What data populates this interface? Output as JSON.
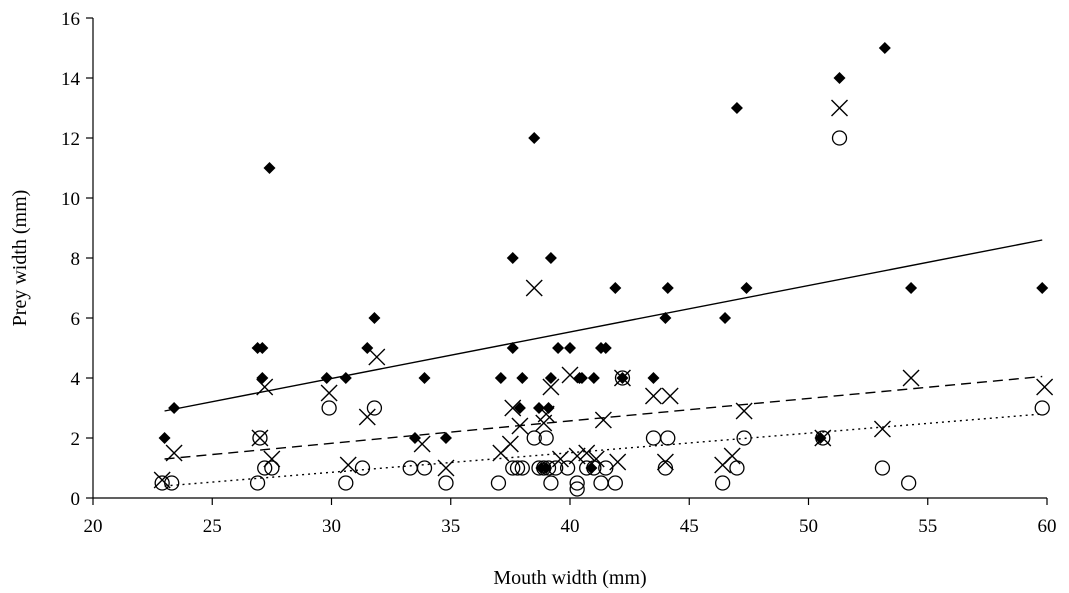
{
  "chart_data": {
    "type": "scatter",
    "xlabel": "Mouth width (mm)",
    "ylabel": "Prey width (mm)",
    "xlim": [
      20,
      60
    ],
    "ylim": [
      0,
      16
    ],
    "xticks": [
      20,
      25,
      30,
      35,
      40,
      45,
      50,
      55,
      60
    ],
    "yticks": [
      0,
      2,
      4,
      6,
      8,
      10,
      12,
      14,
      16
    ],
    "grid": false,
    "legend": "none",
    "series": [
      {
        "marker": "diamond",
        "color": "#000000",
        "points": [
          [
            23.0,
            2
          ],
          [
            23.4,
            3
          ],
          [
            26.9,
            5
          ],
          [
            27.1,
            5
          ],
          [
            27.1,
            4
          ],
          [
            27.4,
            11
          ],
          [
            29.8,
            4
          ],
          [
            30.6,
            4
          ],
          [
            31.5,
            5
          ],
          [
            31.8,
            6
          ],
          [
            33.5,
            2
          ],
          [
            33.9,
            4
          ],
          [
            34.8,
            2
          ],
          [
            37.1,
            4
          ],
          [
            37.6,
            8
          ],
          [
            37.6,
            5
          ],
          [
            37.9,
            3
          ],
          [
            38.0,
            4
          ],
          [
            38.5,
            12
          ],
          [
            38.7,
            3
          ],
          [
            38.8,
            1
          ],
          [
            39.0,
            1
          ],
          [
            39.1,
            3
          ],
          [
            39.2,
            8
          ],
          [
            39.2,
            4
          ],
          [
            39.5,
            5
          ],
          [
            40.0,
            5
          ],
          [
            40.4,
            4
          ],
          [
            40.5,
            4
          ],
          [
            40.9,
            1
          ],
          [
            41.0,
            4
          ],
          [
            41.3,
            5
          ],
          [
            41.5,
            5
          ],
          [
            41.9,
            7
          ],
          [
            42.2,
            4
          ],
          [
            43.5,
            4
          ],
          [
            44.0,
            6
          ],
          [
            44.1,
            7
          ],
          [
            46.5,
            6
          ],
          [
            47.0,
            13
          ],
          [
            47.4,
            7
          ],
          [
            50.5,
            2
          ],
          [
            51.3,
            14
          ],
          [
            53.2,
            15
          ],
          [
            54.3,
            7
          ],
          [
            59.8,
            7
          ]
        ]
      },
      {
        "marker": "x",
        "color": "#000000",
        "points": [
          [
            22.9,
            0.6
          ],
          [
            23.4,
            1.5
          ],
          [
            27.0,
            2.0
          ],
          [
            27.2,
            3.7
          ],
          [
            27.5,
            1.3
          ],
          [
            29.9,
            3.5
          ],
          [
            30.7,
            1.1
          ],
          [
            31.5,
            2.7
          ],
          [
            31.9,
            4.7
          ],
          [
            33.8,
            1.8
          ],
          [
            34.8,
            1.0
          ],
          [
            37.1,
            1.5
          ],
          [
            37.5,
            1.8
          ],
          [
            37.6,
            3.0
          ],
          [
            37.9,
            2.4
          ],
          [
            38.5,
            7.0
          ],
          [
            38.9,
            2.5
          ],
          [
            39.0,
            2.8
          ],
          [
            39.2,
            3.7
          ],
          [
            39.6,
            1.3
          ],
          [
            40.0,
            4.1
          ],
          [
            40.3,
            1.4
          ],
          [
            40.7,
            1.5
          ],
          [
            41.1,
            1.3
          ],
          [
            41.4,
            2.6
          ],
          [
            42.0,
            1.2
          ],
          [
            42.2,
            4.0
          ],
          [
            43.5,
            3.4
          ],
          [
            44.0,
            1.2
          ],
          [
            44.2,
            3.4
          ],
          [
            46.4,
            1.1
          ],
          [
            46.8,
            1.4
          ],
          [
            47.3,
            2.9
          ],
          [
            50.6,
            2.0
          ],
          [
            51.3,
            13.0
          ],
          [
            53.1,
            2.3
          ],
          [
            54.3,
            4.0
          ],
          [
            59.9,
            3.7
          ]
        ]
      },
      {
        "marker": "circle",
        "color": "#000000",
        "points": [
          [
            22.9,
            0.5
          ],
          [
            23.3,
            0.5
          ],
          [
            26.9,
            0.5
          ],
          [
            27.0,
            2.0
          ],
          [
            27.2,
            1.0
          ],
          [
            27.5,
            1.0
          ],
          [
            29.9,
            3.0
          ],
          [
            30.6,
            0.5
          ],
          [
            31.3,
            1.0
          ],
          [
            31.8,
            3.0
          ],
          [
            33.3,
            1.0
          ],
          [
            33.9,
            1.0
          ],
          [
            34.8,
            0.5
          ],
          [
            37.0,
            0.5
          ],
          [
            37.6,
            1.0
          ],
          [
            37.8,
            1.0
          ],
          [
            38.0,
            1.0
          ],
          [
            38.5,
            2.0
          ],
          [
            38.7,
            1.0
          ],
          [
            38.9,
            1.0
          ],
          [
            39.0,
            2.0
          ],
          [
            39.1,
            1.0
          ],
          [
            39.2,
            0.5
          ],
          [
            39.4,
            1.0
          ],
          [
            39.9,
            1.0
          ],
          [
            40.3,
            0.5
          ],
          [
            40.3,
            0.3
          ],
          [
            40.7,
            1.0
          ],
          [
            41.0,
            1.0
          ],
          [
            41.3,
            0.5
          ],
          [
            41.5,
            1.0
          ],
          [
            41.9,
            0.5
          ],
          [
            42.2,
            4.0
          ],
          [
            43.5,
            2.0
          ],
          [
            44.0,
            1.0
          ],
          [
            44.1,
            2.0
          ],
          [
            46.4,
            0.5
          ],
          [
            47.0,
            1.0
          ],
          [
            47.3,
            2.0
          ],
          [
            50.6,
            2.0
          ],
          [
            51.3,
            12.0
          ],
          [
            53.1,
            1.0
          ],
          [
            54.2,
            0.5
          ],
          [
            59.8,
            3.0
          ]
        ]
      }
    ],
    "trendlines": [
      {
        "style": "solid",
        "x": [
          23.0,
          59.8
        ],
        "y": [
          2.9,
          8.6
        ]
      },
      {
        "style": "dashed",
        "x": [
          23.0,
          59.8
        ],
        "y": [
          1.3,
          4.05
        ]
      },
      {
        "style": "dotted",
        "x": [
          23.0,
          59.8
        ],
        "y": [
          0.4,
          2.8
        ]
      }
    ]
  }
}
